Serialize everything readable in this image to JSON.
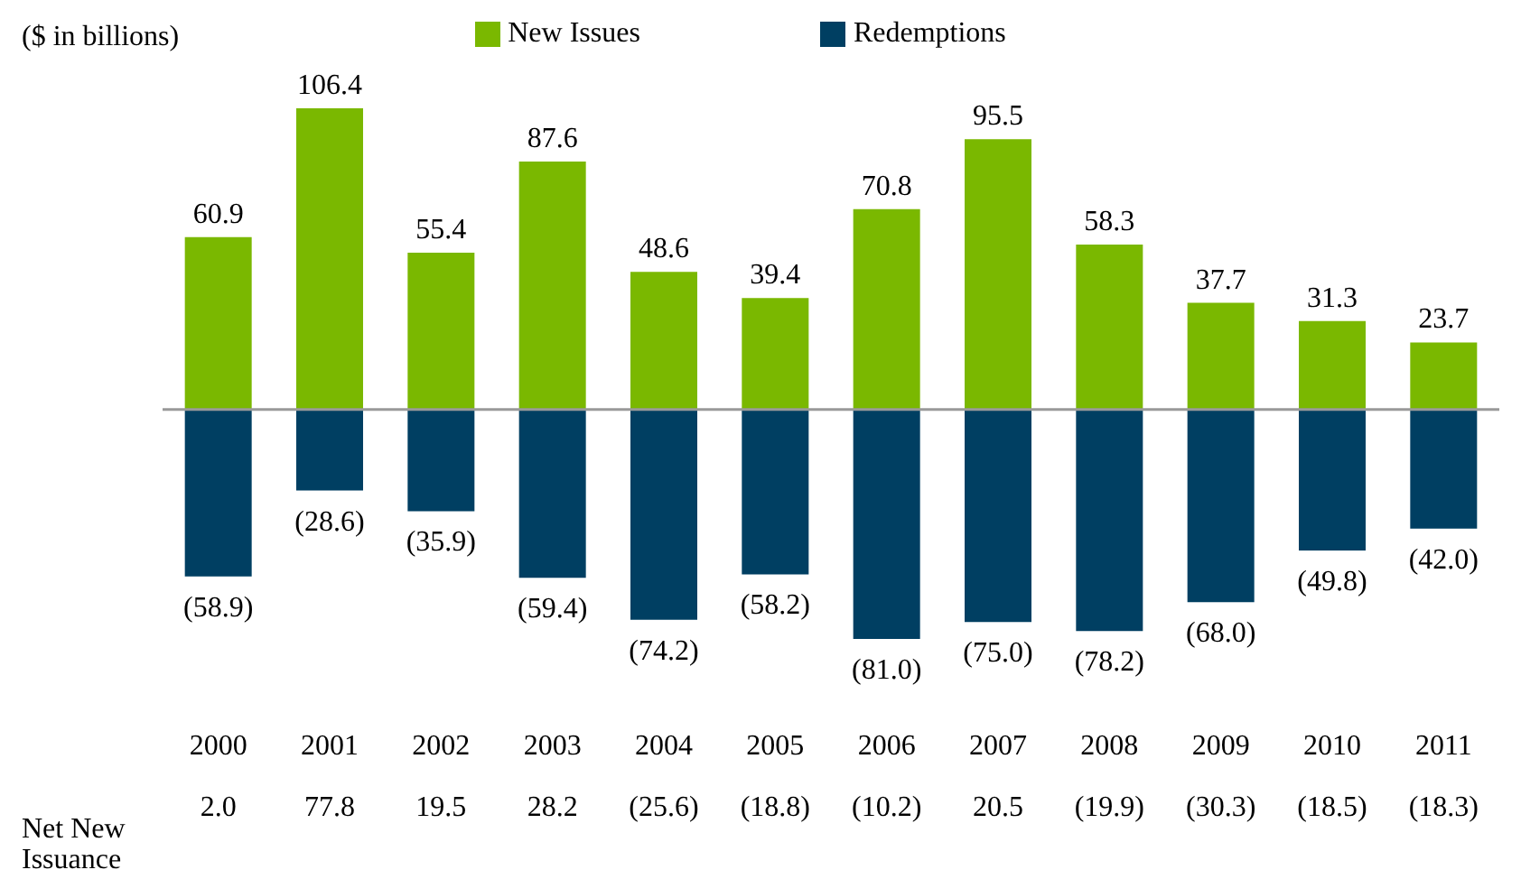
{
  "chart_data": {
    "type": "bar",
    "ylabel": "($ in billions)",
    "categories": [
      "2000",
      "2001",
      "2002",
      "2003",
      "2004",
      "2005",
      "2006",
      "2007",
      "2008",
      "2009",
      "2010",
      "2011"
    ],
    "stacked": true,
    "tick_labels": "x",
    "legend": "top",
    "series": [
      {
        "name": "New Issues",
        "color": "#7ab800",
        "values": [
          60.9,
          106.4,
          55.4,
          87.6,
          48.6,
          39.4,
          70.8,
          95.5,
          58.3,
          37.7,
          31.3,
          23.7
        ],
        "value_labels": [
          "60.9",
          "106.4",
          "55.4",
          "87.6",
          "48.6",
          "39.4",
          "70.8",
          "95.5",
          "58.3",
          "37.7",
          "31.3",
          "23.7"
        ]
      },
      {
        "name": "Redemptions",
        "color": "#003f62",
        "values": [
          -58.9,
          -28.6,
          -35.9,
          -59.4,
          -74.2,
          -58.2,
          -81.0,
          -75.0,
          -78.2,
          -68.0,
          -49.8,
          -42.0
        ],
        "value_labels": [
          "(58.9)",
          "(28.6)",
          "(35.9)",
          "(59.4)",
          "(74.2)",
          "(58.2)",
          "(81.0)",
          "(75.0)",
          "(78.2)",
          "(68.0)",
          "(49.8)",
          "(42.0)"
        ]
      }
    ],
    "annotations": [
      "Net New Issuance",
      "2.0",
      "77.8",
      "19.5",
      "28.2",
      "(25.6)",
      "(18.8)",
      "(10.2)",
      "20.5",
      "(19.9)",
      "(30.3)",
      "(18.5)",
      "(18.3)"
    ]
  }
}
